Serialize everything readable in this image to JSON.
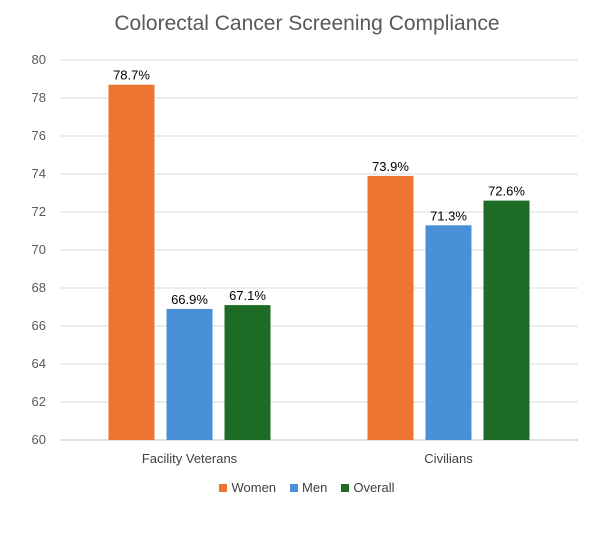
{
  "chart_data": {
    "type": "bar",
    "title": "Colorectal Cancer Screening Compliance",
    "categories": [
      "Facility Veterans",
      "Civilians"
    ],
    "series": [
      {
        "name": "Women",
        "values": [
          78.7,
          73.9
        ],
        "labels": [
          "78.7%",
          "73.9%"
        ],
        "color": "#ED7431"
      },
      {
        "name": "Men",
        "values": [
          66.9,
          71.3
        ],
        "labels": [
          "66.9%",
          "71.3%"
        ],
        "color": "#4A90D9"
      },
      {
        "name": "Overall",
        "values": [
          67.1,
          72.6
        ],
        "labels": [
          "67.1%",
          "72.6%"
        ],
        "color": "#1E6B25"
      }
    ],
    "ylim": [
      60,
      80
    ],
    "yticks": [
      "60",
      "62",
      "64",
      "66",
      "68",
      "70",
      "72",
      "74",
      "76",
      "78",
      "80"
    ],
    "xlabel": "",
    "ylabel": "",
    "grid": true,
    "legend_position": "bottom"
  }
}
